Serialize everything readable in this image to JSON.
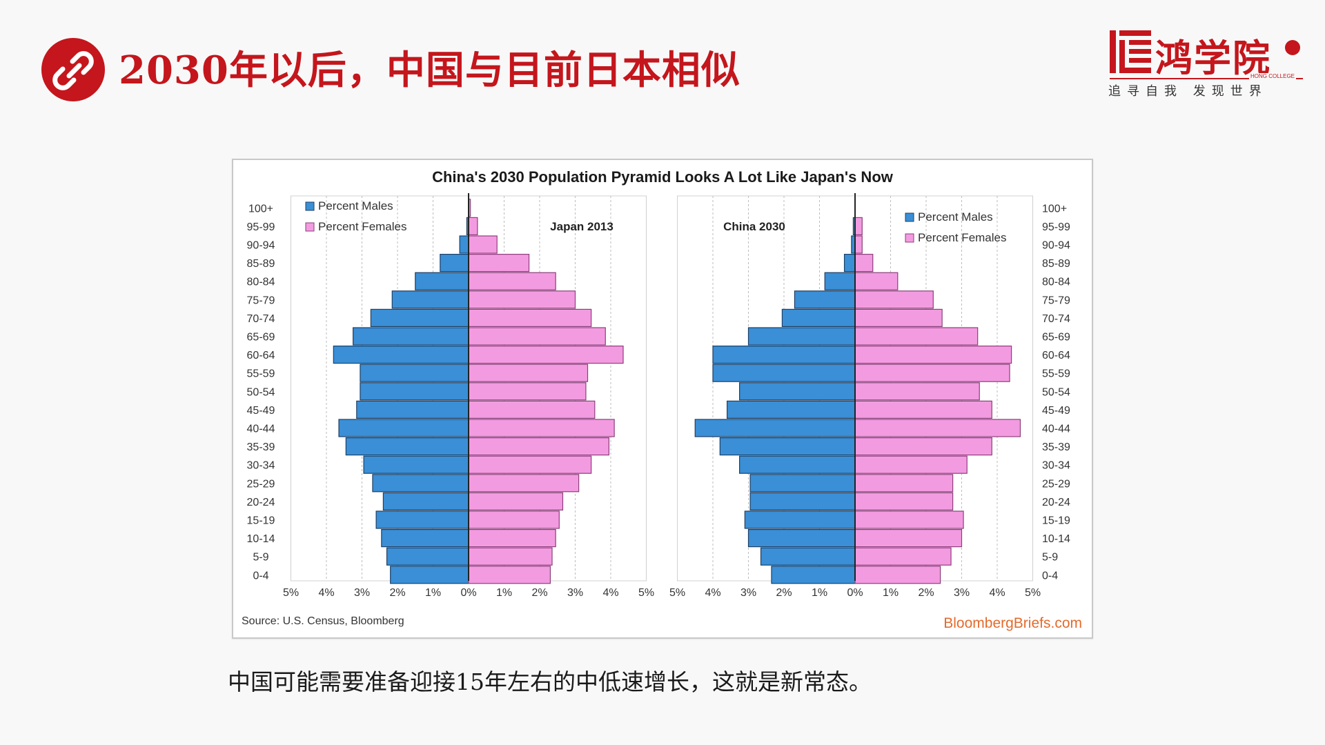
{
  "header": {
    "title": "2030年以后，中国与目前日本相似",
    "icon": "link-icon",
    "accent_color": "#c4161c"
  },
  "logo": {
    "name": "鸿学院",
    "english": "HONG COLLEGE",
    "slogan": "追寻自我 发现世界"
  },
  "caption": "中国可能需要准备迎接15年左右的中低速增长，这就是新常态。",
  "chart_data": {
    "type": "bar",
    "title": "China's 2030 Population Pyramid Looks A Lot Like Japan's Now",
    "source": "Source: U.S. Census, Bloomberg",
    "brand": "BloombergBriefs.com",
    "colors": {
      "males": "#3a8fd6",
      "females": "#f39be0"
    },
    "x_ticks": [
      "5%",
      "4%",
      "3%",
      "2%",
      "1%",
      "0%",
      "1%",
      "2%",
      "3%",
      "4%",
      "5%"
    ],
    "xlim": [
      -5,
      5
    ],
    "panels": [
      {
        "label": "Japan 2013",
        "legend": [
          "Percent Males",
          "Percent Females"
        ],
        "legend_position": "top-left",
        "categories": [
          "100+",
          "95-99",
          "90-94",
          "85-89",
          "80-84",
          "75-79",
          "70-74",
          "65-69",
          "60-64",
          "55-59",
          "50-54",
          "45-49",
          "40-44",
          "35-39",
          "30-34",
          "25-29",
          "20-24",
          "15-19",
          "10-14",
          "5-9",
          "0-4"
        ],
        "series": [
          {
            "name": "Percent Males",
            "values": [
              0.0,
              0.05,
              0.25,
              0.8,
              1.5,
              2.15,
              2.75,
              3.25,
              3.8,
              3.05,
              3.05,
              3.15,
              3.65,
              3.45,
              2.95,
              2.7,
              2.4,
              2.6,
              2.45,
              2.3,
              2.2
            ]
          },
          {
            "name": "Percent Females",
            "values": [
              0.05,
              0.25,
              0.8,
              1.7,
              2.45,
              3.0,
              3.45,
              3.85,
              4.35,
              3.35,
              3.3,
              3.55,
              4.1,
              3.95,
              3.45,
              3.1,
              2.65,
              2.55,
              2.45,
              2.35,
              2.3
            ]
          }
        ]
      },
      {
        "label": "China 2030",
        "legend": [
          "Percent Males",
          "Percent Females"
        ],
        "legend_position": "top-right",
        "categories": [
          "100+",
          "95-99",
          "90-94",
          "85-89",
          "80-84",
          "75-79",
          "70-74",
          "65-69",
          "60-64",
          "55-59",
          "50-54",
          "45-49",
          "40-44",
          "35-39",
          "30-34",
          "25-29",
          "20-24",
          "15-19",
          "10-14",
          "5-9",
          "0-4"
        ],
        "series": [
          {
            "name": "Percent Males",
            "values": [
              0.0,
              0.05,
              0.1,
              0.3,
              0.85,
              1.7,
              2.05,
              3.0,
              4.0,
              4.0,
              3.25,
              3.6,
              4.5,
              3.8,
              3.25,
              2.95,
              2.95,
              3.1,
              3.0,
              2.65,
              2.35
            ]
          },
          {
            "name": "Percent Females",
            "values": [
              0.0,
              0.2,
              0.2,
              0.5,
              1.2,
              2.2,
              2.45,
              3.45,
              4.4,
              4.35,
              3.5,
              3.85,
              4.65,
              3.85,
              3.15,
              2.75,
              2.75,
              3.05,
              3.0,
              2.7,
              2.4
            ]
          }
        ]
      }
    ]
  }
}
